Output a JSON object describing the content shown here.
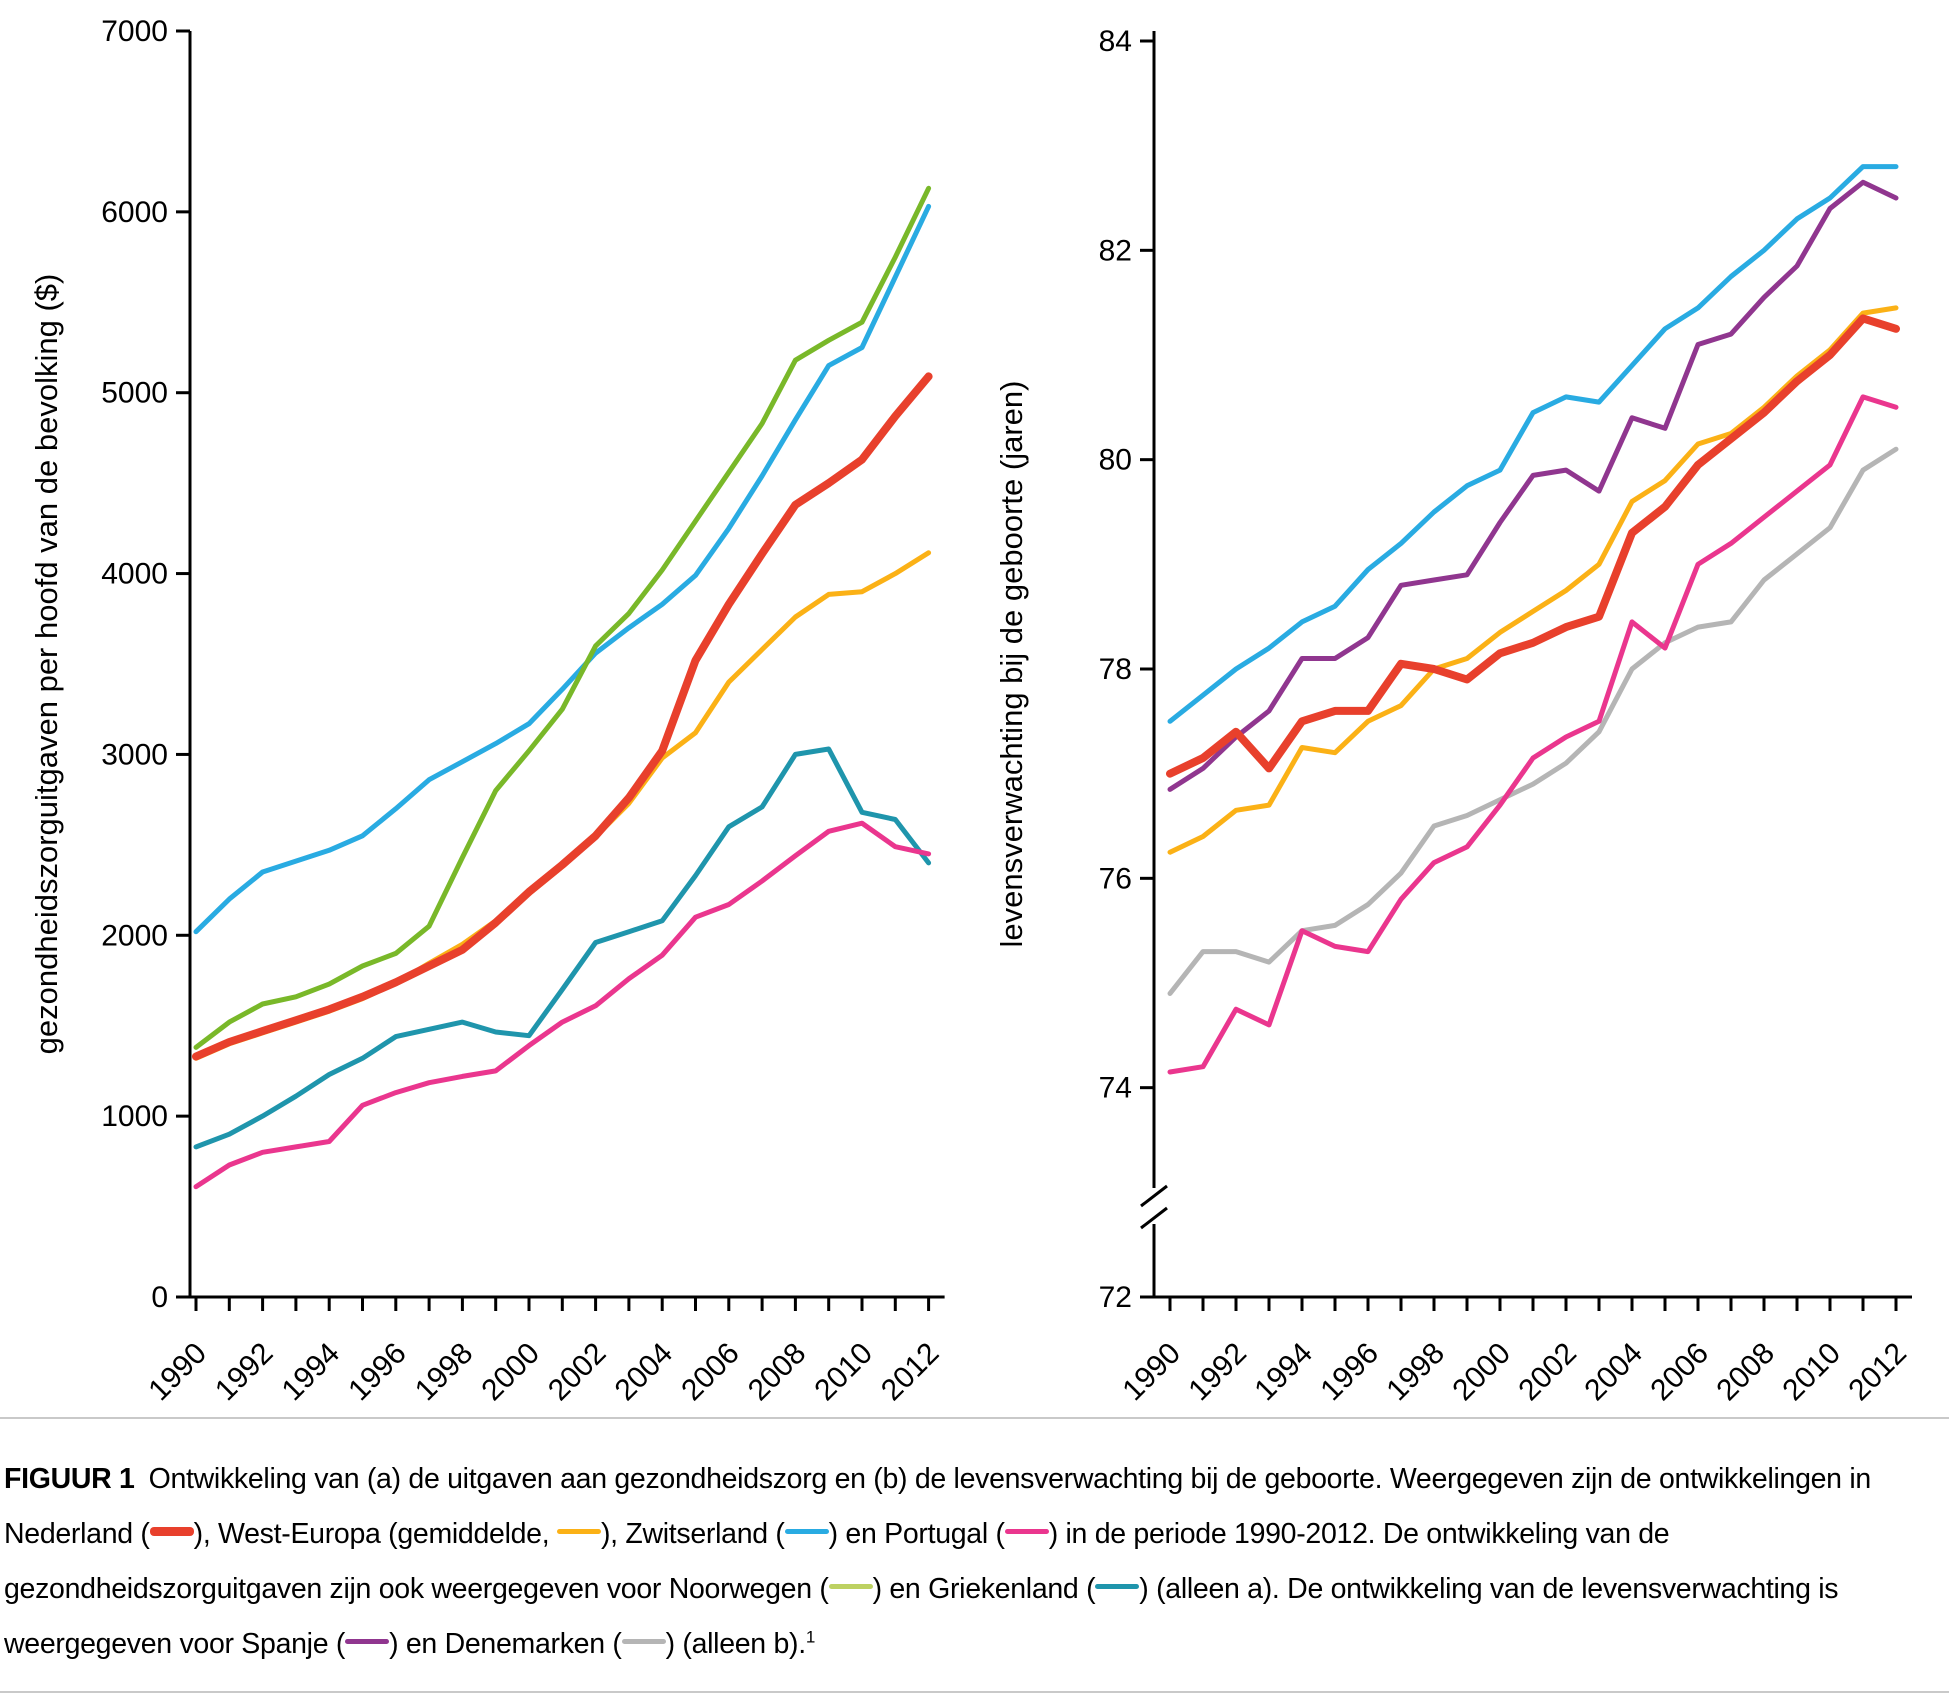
{
  "colors": {
    "nederland": "#e8402c",
    "west_europa": "#fbb116",
    "zwitserland": "#29abe2",
    "portugal": "#ea368e",
    "noorwegen": "#79b829",
    "noorwegen_caption": "#bdd162",
    "griekenland": "#1f95ac",
    "spanje": "#90368f",
    "denemarken": "#b5b5b5",
    "axis": "#000000",
    "rule": "#c9c9c9"
  },
  "years": [
    1990,
    1991,
    1992,
    1993,
    1994,
    1995,
    1996,
    1997,
    1998,
    1999,
    2000,
    2001,
    2002,
    2003,
    2004,
    2005,
    2006,
    2007,
    2008,
    2009,
    2010,
    2011,
    2012
  ],
  "year_tick_labels": [
    "1990",
    "1992",
    "1994",
    "1996",
    "1998",
    "2000",
    "2002",
    "2004",
    "2006",
    "2008",
    "2010",
    "2012"
  ],
  "chart_data": [
    {
      "id": "a",
      "type": "line",
      "title": "",
      "xlabel": "",
      "ylabel": "gezondheidszorguitgaven per hoofd van de bevolking ($)",
      "ylim": [
        0,
        7000
      ],
      "yticks": [
        0,
        1000,
        2000,
        3000,
        4000,
        5000,
        6000,
        7000
      ],
      "ytick_labels": [
        "0",
        "1000",
        "2000",
        "3000",
        "4000",
        "5000",
        "6000",
        "7000"
      ],
      "axis_break": false,
      "grid": false,
      "legend_position": "none",
      "x": [
        1990,
        1991,
        1992,
        1993,
        1994,
        1995,
        1996,
        1997,
        1998,
        1999,
        2000,
        2001,
        2002,
        2003,
        2004,
        2005,
        2006,
        2007,
        2008,
        2009,
        2010,
        2011,
        2012
      ],
      "series": [
        {
          "name": "Zwitserland",
          "color_key": "zwitserland",
          "width": 5,
          "values": [
            2020,
            2200,
            2350,
            2410,
            2470,
            2550,
            2700,
            2860,
            2960,
            3060,
            3170,
            3360,
            3560,
            3700,
            3830,
            3990,
            4250,
            4540,
            4850,
            5150,
            5250,
            5640,
            6030
          ]
        },
        {
          "name": "Noorwegen",
          "color_key": "noorwegen",
          "width": 5,
          "values": [
            1380,
            1520,
            1620,
            1660,
            1730,
            1830,
            1900,
            2050,
            2430,
            2800,
            3020,
            3250,
            3600,
            3780,
            4020,
            4290,
            4560,
            4830,
            5180,
            5290,
            5390,
            5750,
            6130
          ]
        },
        {
          "name": "Griekenland",
          "color_key": "griekenland",
          "width": 5,
          "values": [
            830,
            900,
            1000,
            1110,
            1230,
            1320,
            1440,
            1480,
            1520,
            1465,
            1445,
            1700,
            1960,
            2020,
            2080,
            2330,
            2600,
            2710,
            3000,
            3030,
            2680,
            2640,
            2400
          ]
        },
        {
          "name": "Portugal",
          "color_key": "portugal",
          "width": 5,
          "values": [
            610,
            730,
            800,
            830,
            860,
            1060,
            1130,
            1185,
            1220,
            1250,
            1390,
            1520,
            1610,
            1760,
            1890,
            2100,
            2170,
            2300,
            2440,
            2575,
            2620,
            2490,
            2450
          ]
        },
        {
          "name": "West-Europa (gemiddelde)",
          "color_key": "west_europa",
          "width": 5,
          "values": [
            1320,
            1400,
            1460,
            1520,
            1580,
            1650,
            1735,
            1845,
            1950,
            2080,
            2230,
            2380,
            2545,
            2730,
            2980,
            3120,
            3400,
            3580,
            3760,
            3885,
            3900,
            4000,
            4115
          ]
        },
        {
          "name": "Nederland",
          "color_key": "nederland",
          "width": 8,
          "values": [
            1330,
            1410,
            1470,
            1530,
            1590,
            1660,
            1740,
            1830,
            1920,
            2070,
            2240,
            2390,
            2550,
            2760,
            3020,
            3520,
            3830,
            4110,
            4380,
            4500,
            4630,
            4870,
            5090
          ]
        }
      ]
    },
    {
      "id": "b",
      "type": "line",
      "title": "",
      "xlabel": "",
      "ylabel": "levensverwachting bij de geboorte (jaren)",
      "ylim": [
        72,
        84
      ],
      "yticks": [
        72,
        74,
        76,
        78,
        80,
        82,
        84
      ],
      "ytick_labels": [
        "72",
        "74",
        "76",
        "78",
        "80",
        "82",
        "84"
      ],
      "axis_break": true,
      "grid": false,
      "legend_position": "none",
      "x": [
        1990,
        1991,
        1992,
        1993,
        1994,
        1995,
        1996,
        1997,
        1998,
        1999,
        2000,
        2001,
        2002,
        2003,
        2004,
        2005,
        2006,
        2007,
        2008,
        2009,
        2010,
        2011,
        2012
      ],
      "series": [
        {
          "name": "Denemarken",
          "color_key": "denemarken",
          "width": 5,
          "values": [
            74.9,
            75.3,
            75.3,
            75.2,
            75.5,
            75.55,
            75.75,
            76.05,
            76.5,
            76.6,
            76.75,
            76.9,
            77.1,
            77.4,
            78.0,
            78.25,
            78.4,
            78.45,
            78.85,
            79.1,
            79.35,
            79.9,
            80.1
          ]
        },
        {
          "name": "Portugal",
          "color_key": "portugal",
          "width": 5,
          "values": [
            74.15,
            74.2,
            74.75,
            74.6,
            75.5,
            75.35,
            75.3,
            75.8,
            76.15,
            76.3,
            76.7,
            77.15,
            77.35,
            77.5,
            78.45,
            78.2,
            79.0,
            79.2,
            79.45,
            79.7,
            79.95,
            80.6,
            80.5
          ]
        },
        {
          "name": "Spanje",
          "color_key": "spanje",
          "width": 5,
          "values": [
            76.85,
            77.05,
            77.35,
            77.6,
            78.1,
            78.1,
            78.3,
            78.8,
            78.85,
            78.9,
            79.4,
            79.85,
            79.9,
            79.7,
            80.4,
            80.3,
            81.1,
            81.2,
            81.55,
            81.85,
            82.4,
            82.65,
            82.5
          ]
        },
        {
          "name": "Zwitserland",
          "color_key": "zwitserland",
          "width": 5,
          "values": [
            77.5,
            77.75,
            78.0,
            78.2,
            78.45,
            78.6,
            78.95,
            79.2,
            79.5,
            79.75,
            79.9,
            80.45,
            80.6,
            80.55,
            80.9,
            81.25,
            81.45,
            81.75,
            82.0,
            82.3,
            82.5,
            82.8,
            82.8
          ]
        },
        {
          "name": "West-Europa (gemiddelde)",
          "color_key": "west_europa",
          "width": 5,
          "values": [
            76.25,
            76.4,
            76.65,
            76.7,
            77.25,
            77.2,
            77.5,
            77.65,
            78.0,
            78.1,
            78.35,
            78.55,
            78.75,
            79.0,
            79.6,
            79.8,
            80.15,
            80.25,
            80.5,
            80.8,
            81.05,
            81.4,
            81.45
          ]
        },
        {
          "name": "Nederland",
          "color_key": "nederland",
          "width": 8,
          "values": [
            77.0,
            77.15,
            77.4,
            77.05,
            77.5,
            77.6,
            77.6,
            78.05,
            78.0,
            77.9,
            78.15,
            78.25,
            78.4,
            78.5,
            79.3,
            79.55,
            79.95,
            80.2,
            80.45,
            80.75,
            81.0,
            81.35,
            81.25
          ]
        }
      ]
    }
  ],
  "caption": {
    "parts": [
      {
        "type": "label",
        "text": "FIGUUR 1"
      },
      {
        "type": "text",
        "text": "Ontwikkeling van (a) de uitgaven aan gezondheidszorg en (b) de levensverwachting bij de geboorte. Weergegeven zijn de ontwikkelingen in Nederland ("
      },
      {
        "type": "swatch",
        "series": "nederland",
        "thick": true
      },
      {
        "type": "text",
        "text": "), West-Europa (gemiddelde, "
      },
      {
        "type": "swatch",
        "series": "west_europa"
      },
      {
        "type": "text",
        "text": "), Zwitserland ("
      },
      {
        "type": "swatch",
        "series": "zwitserland"
      },
      {
        "type": "text",
        "text": ") en Portugal ("
      },
      {
        "type": "swatch",
        "series": "portugal"
      },
      {
        "type": "text",
        "text": ") in de periode 1990-2012. De ontwikkeling van de gezondheidszorguitgaven zijn ook weergegeven voor Noorwegen ("
      },
      {
        "type": "swatch",
        "series": "noorwegen_caption"
      },
      {
        "type": "text",
        "text": ") en Griekenland ("
      },
      {
        "type": "swatch",
        "series": "griekenland"
      },
      {
        "type": "text",
        "text": ") (alleen a). De ontwikkeling van de levensverwachting is weergegeven voor Spanje ("
      },
      {
        "type": "swatch",
        "series": "spanje"
      },
      {
        "type": "text",
        "text": ") en Denemarken ("
      },
      {
        "type": "swatch",
        "series": "denemarken"
      },
      {
        "type": "text",
        "text": ") (alleen b)."
      },
      {
        "type": "sup",
        "text": "1"
      }
    ]
  }
}
